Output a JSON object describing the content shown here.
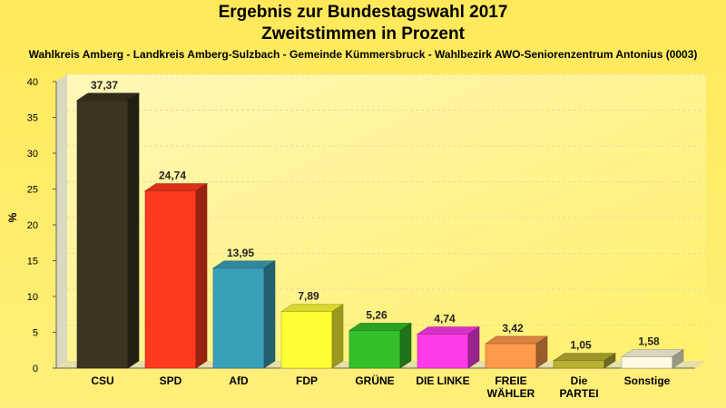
{
  "chart_data": {
    "type": "bar",
    "title": "Ergebnis zur Bundestagswahl 2017",
    "subtitle": "Zweitstimmen in Prozent",
    "caption": "Wahlkreis Amberg - Landkreis Amberg-Sulzbach - Gemeinde Kümmersbruck - Wahlbezirk AWO-Seniorenzentrum Antonius (0003)",
    "ylabel": "%",
    "ylim": [
      0,
      40
    ],
    "yticks": [
      0,
      5,
      10,
      15,
      20,
      25,
      30,
      35,
      40
    ],
    "grid": true,
    "categories": [
      [
        "CSU"
      ],
      [
        "SPD"
      ],
      [
        "AfD"
      ],
      [
        "FDP"
      ],
      [
        "GRÜNE"
      ],
      [
        "DIE LINKE"
      ],
      [
        "FREIE",
        "WÄHLER"
      ],
      [
        "Die",
        "PARTEI"
      ],
      [
        "Sonstige"
      ]
    ],
    "values": [
      37.37,
      24.74,
      13.95,
      7.89,
      5.26,
      4.74,
      3.42,
      1.05,
      1.58
    ],
    "value_labels": [
      "37,37",
      "24,74",
      "13,95",
      "7,89",
      "5,26",
      "4,74",
      "3,42",
      "1,05",
      "1,58"
    ],
    "colors": [
      "#3a3520",
      "#ff3a1f",
      "#3aa0b8",
      "#ffff33",
      "#33c02a",
      "#ff3aea",
      "#ff9a4a",
      "#b8b030",
      "#fffbe0"
    ]
  }
}
